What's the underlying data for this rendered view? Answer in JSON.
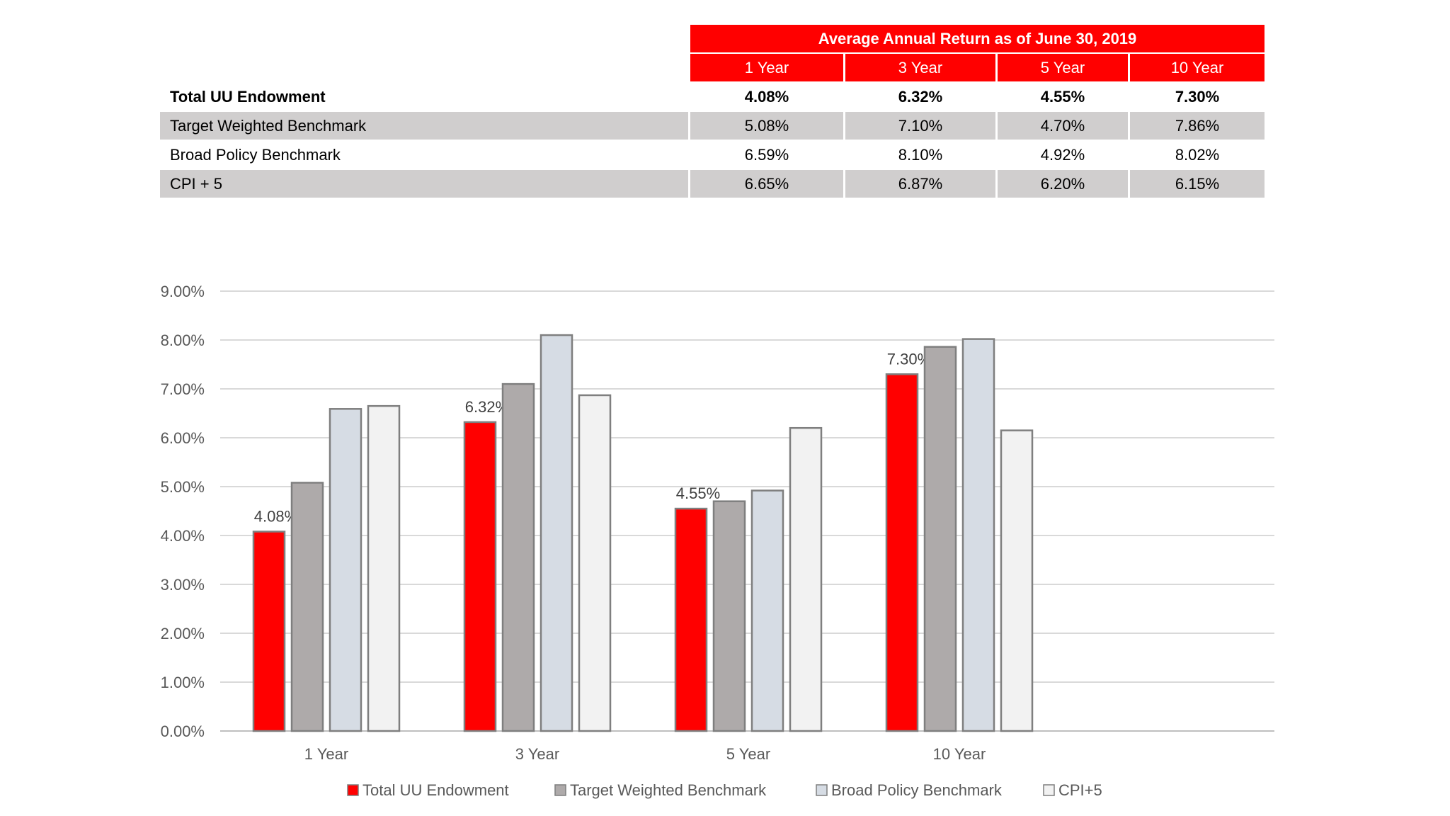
{
  "table": {
    "title": "Average Annual Return as of June 30, 2019",
    "headers": [
      "1 Year",
      "3 Year",
      "5 Year",
      "10 Year"
    ],
    "rows": [
      {
        "label": "Total UU Endowment",
        "values": [
          "4.08%",
          "6.32%",
          "4.55%",
          "7.30%"
        ]
      },
      {
        "label": "Target Weighted Benchmark",
        "values": [
          "5.08%",
          "7.10%",
          "4.70%",
          "7.86%"
        ]
      },
      {
        "label": "Broad Policy Benchmark",
        "values": [
          "6.59%",
          "8.10%",
          "4.92%",
          "8.02%"
        ]
      },
      {
        "label": "CPI + 5",
        "values": [
          "6.65%",
          "6.87%",
          "6.20%",
          "6.15%"
        ]
      }
    ]
  },
  "chart_data": {
    "type": "bar",
    "categories": [
      "1 Year",
      "3 Year",
      "5 Year",
      "10 Year"
    ],
    "series": [
      {
        "name": "Total UU Endowment",
        "values": [
          4.08,
          6.32,
          4.55,
          7.3
        ],
        "color": "#ff0000",
        "data_labels": [
          "4.08%",
          "6.32%",
          "4.55%",
          "7.30%"
        ]
      },
      {
        "name": "Target Weighted Benchmark",
        "values": [
          5.08,
          7.1,
          4.7,
          7.86
        ],
        "color": "#aeaaaa"
      },
      {
        "name": "Broad Policy Benchmark",
        "values": [
          6.59,
          8.1,
          4.92,
          8.02
        ],
        "color": "#d6dce4"
      },
      {
        "name": "CPI+5",
        "values": [
          6.65,
          6.87,
          6.2,
          6.15
        ],
        "color": "#f2f2f2"
      }
    ],
    "ylim": [
      0,
      9
    ],
    "yticks": [
      "0.00%",
      "1.00%",
      "2.00%",
      "3.00%",
      "4.00%",
      "5.00%",
      "6.00%",
      "7.00%",
      "8.00%",
      "9.00%"
    ],
    "grid": true,
    "legend_position": "bottom"
  }
}
